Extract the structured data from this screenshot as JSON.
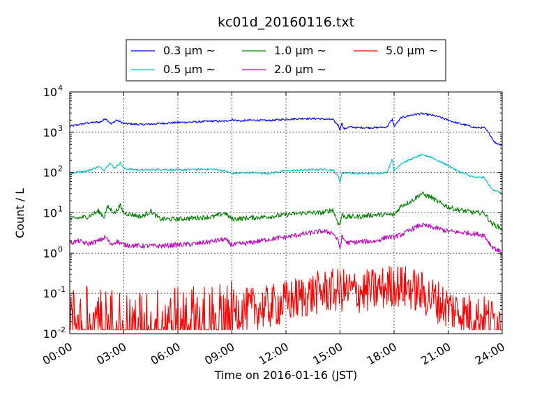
{
  "chart_data": {
    "type": "line",
    "title": "kc01d_20160116.txt",
    "xlabel": "Time on 2016-01-16 (JST)",
    "ylabel": "Count / L",
    "x_tick_labels": [
      "00:00",
      "03:00",
      "06:00",
      "09:00",
      "12:00",
      "15:00",
      "18:00",
      "21:00",
      "24:00"
    ],
    "x_tick_hours": [
      0,
      3,
      6,
      9,
      12,
      15,
      18,
      21,
      24
    ],
    "y_scale": "log",
    "ylim": [
      0.01,
      10000
    ],
    "y_ticks": [
      {
        "base": "10",
        "exp": "-2",
        "value": 0.01
      },
      {
        "base": "10",
        "exp": "-1",
        "value": 0.1
      },
      {
        "base": "10",
        "exp": "0",
        "value": 1
      },
      {
        "base": "10",
        "exp": "1",
        "value": 10
      },
      {
        "base": "10",
        "exp": "2",
        "value": 100
      },
      {
        "base": "10",
        "exp": "3",
        "value": 1000
      },
      {
        "base": "10",
        "exp": "4",
        "value": 10000
      }
    ],
    "grid": true,
    "legend_position": "top",
    "series": [
      {
        "name": "0.3 μm ~",
        "color": "#0000ff",
        "x": [
          0,
          1,
          1.7,
          2.0,
          2.3,
          2.6,
          3,
          4,
          5,
          6,
          7,
          8,
          8.5,
          9,
          9.5,
          10,
          11,
          12,
          13,
          14,
          14.6,
          14.9,
          15.0,
          15.1,
          15.2,
          15.5,
          16,
          17,
          17.6,
          17.9,
          18.0,
          18.4,
          19,
          19.5,
          20,
          20.5,
          21,
          21.5,
          22,
          22.5,
          23,
          23.3,
          23.6,
          24
        ],
        "y": [
          1400,
          1700,
          1800,
          2200,
          1600,
          2000,
          1650,
          1550,
          1650,
          1750,
          1800,
          1900,
          1850,
          2050,
          1900,
          2000,
          1950,
          2100,
          2200,
          2150,
          2050,
          1500,
          1150,
          1800,
          1200,
          1350,
          1300,
          1300,
          1350,
          2100,
          1400,
          2300,
          2700,
          2900,
          2700,
          2400,
          2000,
          1700,
          1500,
          1300,
          1300,
          900,
          550,
          480
        ]
      },
      {
        "name": "0.5 μm ~",
        "color": "#00bfbf",
        "x": [
          0,
          0.5,
          1,
          1.6,
          1.9,
          2.2,
          2.5,
          2.8,
          3,
          4,
          5,
          6,
          7,
          8,
          8.6,
          9,
          10,
          11,
          12,
          13,
          14,
          14.6,
          14.9,
          15.0,
          15.1,
          15.3,
          16,
          17,
          17.6,
          17.9,
          18.0,
          18.4,
          19,
          19.5,
          20,
          20.5,
          21,
          21.5,
          22,
          22.5,
          23,
          23.4,
          24
        ],
        "y": [
          90,
          105,
          110,
          140,
          115,
          170,
          130,
          175,
          125,
          115,
          120,
          115,
          120,
          120,
          110,
          95,
          100,
          95,
          110,
          115,
          120,
          115,
          80,
          60,
          95,
          100,
          95,
          95,
          100,
          220,
          110,
          170,
          220,
          270,
          250,
          190,
          150,
          110,
          90,
          75,
          75,
          40,
          30
        ]
      },
      {
        "name": "1.0 μm ~",
        "color": "#007f00",
        "x": [
          0,
          0.5,
          1,
          1.6,
          1.9,
          2.1,
          2.5,
          2.8,
          3,
          4,
          4.5,
          5,
          6,
          7,
          8,
          8.6,
          9,
          10,
          11,
          12,
          13,
          14,
          14.6,
          14.9,
          15.0,
          15.1,
          15.3,
          16,
          17,
          17.6,
          18.0,
          18.4,
          19,
          19.5,
          20,
          20.5,
          21,
          21.5,
          22,
          22.5,
          23,
          23.4,
          24
        ],
        "y": [
          7,
          7.5,
          8,
          11,
          8,
          14,
          10,
          15,
          10,
          8,
          11,
          7,
          7,
          7.5,
          8,
          10,
          7,
          7.5,
          8,
          9,
          10,
          10,
          12,
          5.5,
          5,
          9,
          8,
          8,
          9,
          9,
          9,
          15,
          20,
          30,
          25,
          18,
          14,
          12,
          11,
          10,
          10,
          5.5,
          4
        ]
      },
      {
        "name": "2.0 μm ~",
        "color": "#bf00bf",
        "x": [
          0,
          0.5,
          1,
          1.6,
          2.0,
          2.3,
          2.6,
          3,
          4,
          5,
          6,
          7,
          8,
          8.6,
          9,
          10,
          11,
          12,
          13,
          14,
          14.6,
          14.9,
          15.0,
          15.1,
          15.4,
          16,
          17,
          17.6,
          18.0,
          18.5,
          19,
          19.5,
          20,
          20.5,
          21,
          21.5,
          22,
          22.5,
          23,
          23.4,
          24
        ],
        "y": [
          1.8,
          2.0,
          1.7,
          2.0,
          2.5,
          1.6,
          2.0,
          1.6,
          1.5,
          1.5,
          1.6,
          1.7,
          2.0,
          2.2,
          1.6,
          1.8,
          2.2,
          2.5,
          3.0,
          3.5,
          3.2,
          2.0,
          1.3,
          2.5,
          1.8,
          1.9,
          2.0,
          2.5,
          2.5,
          3.0,
          4.0,
          5.0,
          4.5,
          4.0,
          3.5,
          3.3,
          3.2,
          3.0,
          2.8,
          1.5,
          1.0
        ]
      },
      {
        "name": "5.0 μm ~",
        "color": "#ff0000",
        "x": [
          0,
          1,
          2,
          3,
          4,
          5,
          6,
          7,
          8,
          9,
          10,
          11,
          12,
          13,
          14,
          15,
          16,
          17,
          18,
          19,
          20,
          21,
          22,
          23,
          24
        ],
        "y": [
          0.025,
          0.03,
          0.025,
          0.025,
          0.025,
          0.025,
          0.03,
          0.03,
          0.035,
          0.035,
          0.04,
          0.045,
          0.06,
          0.085,
          0.11,
          0.12,
          0.11,
          0.12,
          0.16,
          0.13,
          0.08,
          0.045,
          0.03,
          0.025,
          0.02
        ]
      }
    ]
  }
}
